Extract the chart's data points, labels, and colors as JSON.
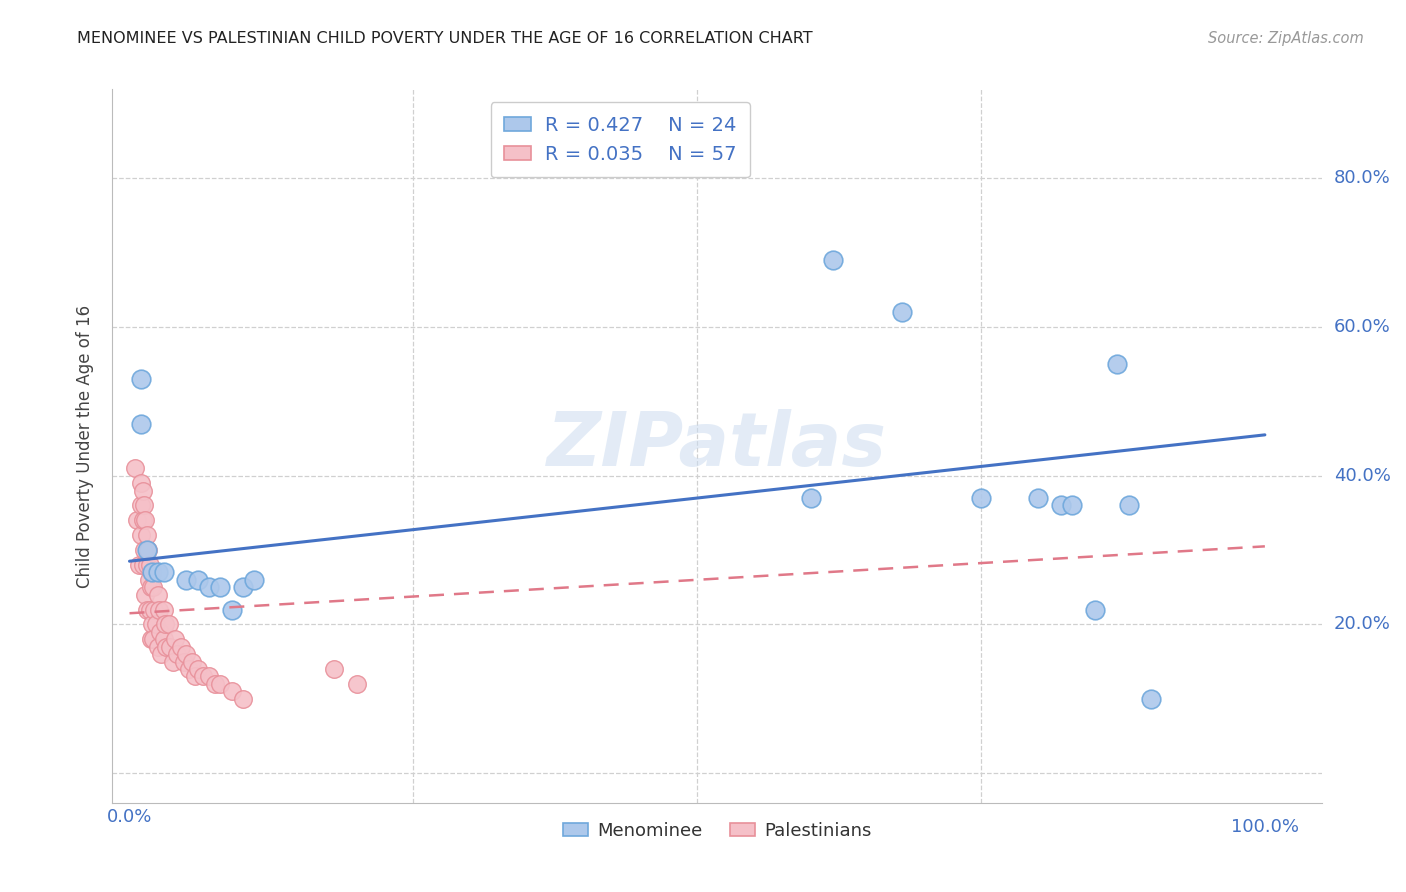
{
  "title": "MENOMINEE VS PALESTINIAN CHILD POVERTY UNDER THE AGE OF 16 CORRELATION CHART",
  "source": "Source: ZipAtlas.com",
  "ylabel": "Child Poverty Under the Age of 16",
  "background_color": "#ffffff",
  "menominee_R": 0.427,
  "menominee_N": 24,
  "palestinian_R": 0.035,
  "palestinian_N": 57,
  "menominee_color": "#6fa8dc",
  "menominee_fill": "#adc8eb",
  "palestinian_color": "#e8909a",
  "palestinian_fill": "#f5c0c8",
  "menominee_x": [
    0.01,
    0.01,
    0.015,
    0.02,
    0.025,
    0.03,
    0.05,
    0.06,
    0.07,
    0.08,
    0.09,
    0.1,
    0.11,
    0.62,
    0.68,
    0.75,
    0.8,
    0.82,
    0.83,
    0.85,
    0.87,
    0.88,
    0.9,
    0.6
  ],
  "menominee_y": [
    0.53,
    0.47,
    0.3,
    0.27,
    0.27,
    0.27,
    0.26,
    0.26,
    0.25,
    0.25,
    0.22,
    0.25,
    0.26,
    0.69,
    0.62,
    0.37,
    0.37,
    0.36,
    0.36,
    0.22,
    0.55,
    0.36,
    0.1,
    0.37
  ],
  "palestinian_x": [
    0.005,
    0.007,
    0.008,
    0.01,
    0.01,
    0.01,
    0.012,
    0.012,
    0.012,
    0.013,
    0.013,
    0.014,
    0.014,
    0.015,
    0.015,
    0.015,
    0.016,
    0.017,
    0.018,
    0.018,
    0.019,
    0.019,
    0.02,
    0.02,
    0.021,
    0.021,
    0.022,
    0.023,
    0.025,
    0.025,
    0.026,
    0.027,
    0.028,
    0.03,
    0.03,
    0.031,
    0.032,
    0.035,
    0.036,
    0.038,
    0.04,
    0.042,
    0.045,
    0.048,
    0.05,
    0.052,
    0.055,
    0.058,
    0.06,
    0.065,
    0.07,
    0.075,
    0.08,
    0.09,
    0.1,
    0.18,
    0.2
  ],
  "palestinian_y": [
    0.41,
    0.34,
    0.28,
    0.39,
    0.36,
    0.32,
    0.38,
    0.34,
    0.28,
    0.36,
    0.3,
    0.34,
    0.24,
    0.32,
    0.28,
    0.22,
    0.3,
    0.26,
    0.28,
    0.22,
    0.25,
    0.18,
    0.27,
    0.2,
    0.25,
    0.18,
    0.22,
    0.2,
    0.24,
    0.17,
    0.22,
    0.19,
    0.16,
    0.22,
    0.18,
    0.2,
    0.17,
    0.2,
    0.17,
    0.15,
    0.18,
    0.16,
    0.17,
    0.15,
    0.16,
    0.14,
    0.15,
    0.13,
    0.14,
    0.13,
    0.13,
    0.12,
    0.12,
    0.11,
    0.1,
    0.14,
    0.12
  ],
  "menominee_trend_x": [
    0.0,
    1.0
  ],
  "menominee_trend_y": [
    0.285,
    0.455
  ],
  "palestinian_trend_x": [
    0.0,
    1.0
  ],
  "palestinian_trend_y": [
    0.215,
    0.305
  ],
  "xlim": [
    -0.015,
    1.05
  ],
  "ylim": [
    -0.04,
    0.92
  ],
  "xticks": [
    0.0,
    0.25,
    0.5,
    0.75,
    1.0
  ],
  "yticks": [
    0.0,
    0.2,
    0.4,
    0.6,
    0.8
  ],
  "xticklabels_left": [
    "0.0%",
    "",
    "",
    "",
    ""
  ],
  "xticklabels_right": "100.0%",
  "yticklabels_right": [
    "",
    "20.0%",
    "40.0%",
    "60.0%",
    "80.0%"
  ]
}
